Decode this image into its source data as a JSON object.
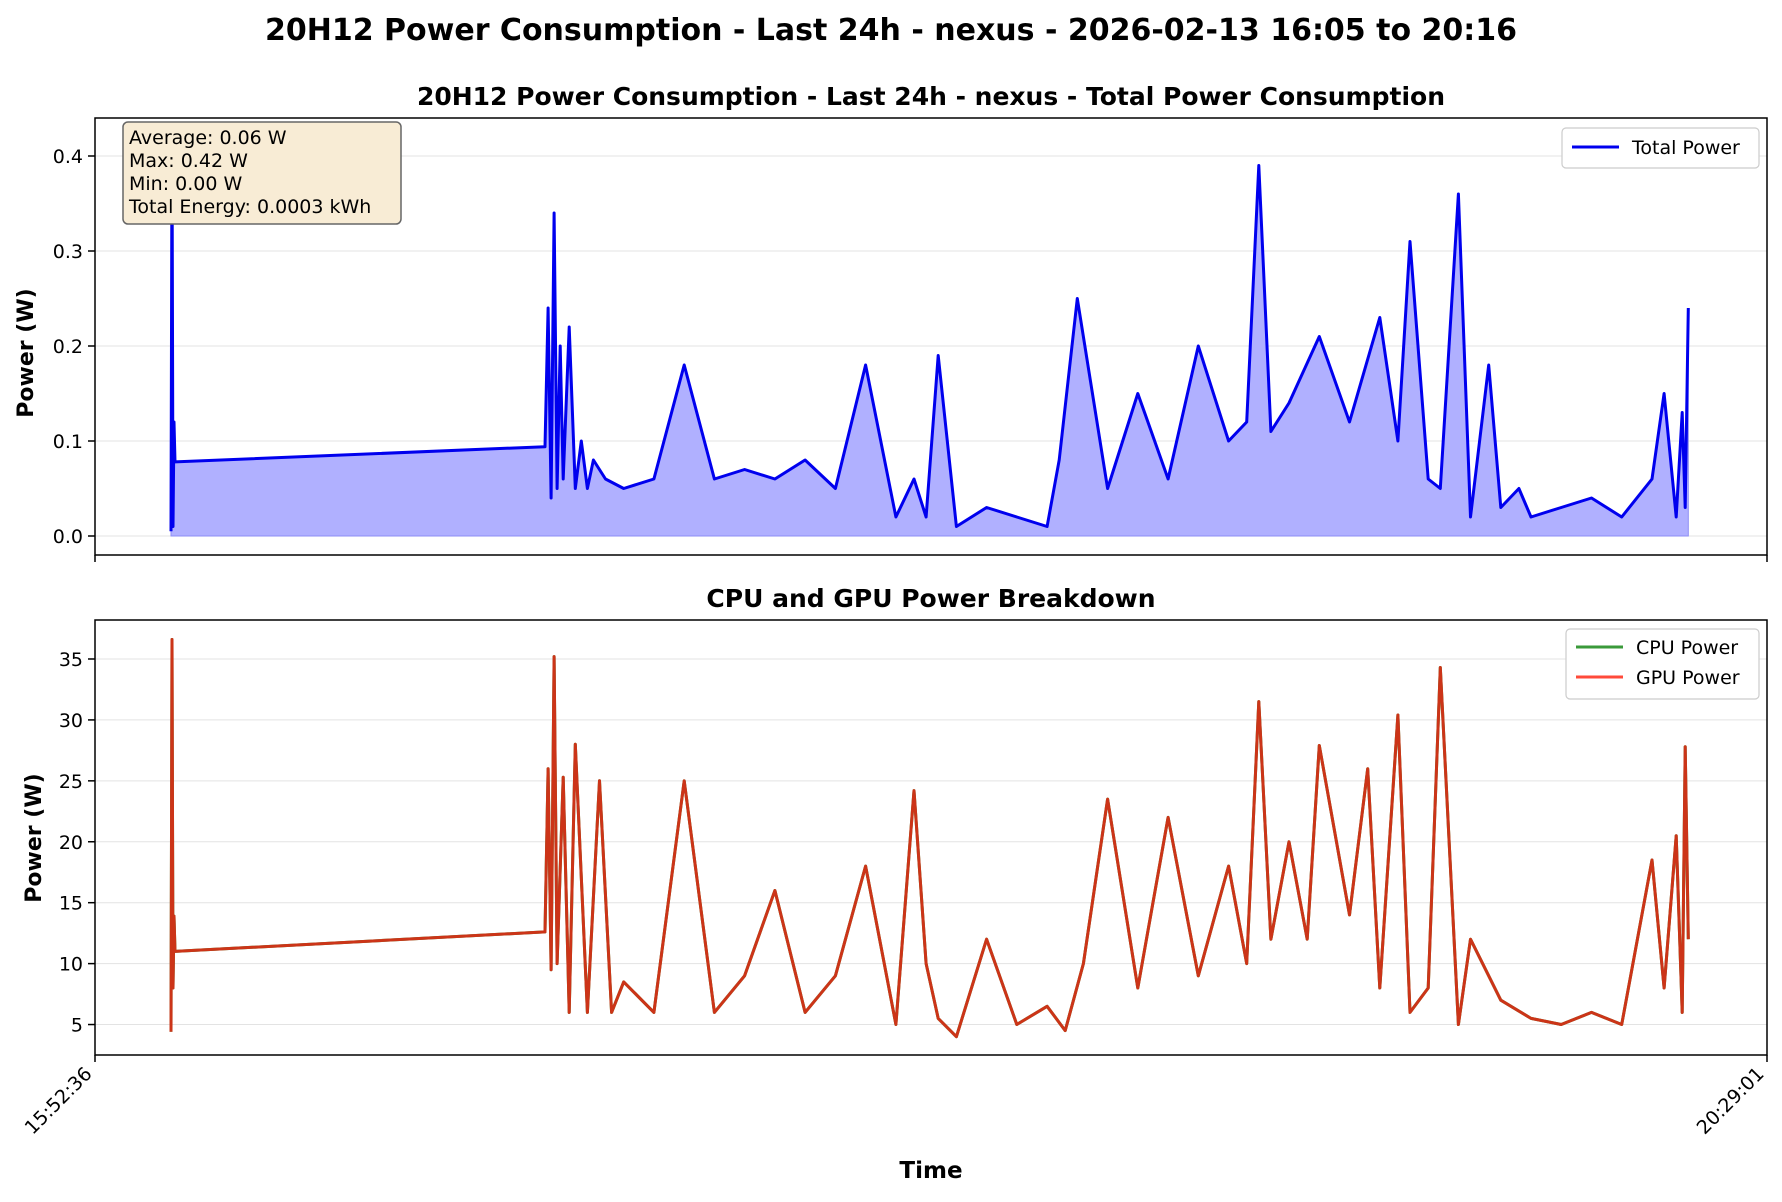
{
  "figure": {
    "suptitle": "20H12 Power Consumption - Last 24h - nexus - 2026-02-13 16:05 to 20:16",
    "xlabel": "Time"
  },
  "chart_data": [
    {
      "type": "area",
      "title": "20H12 Power Consumption - Last 24h - nexus - Total Power Consumption",
      "ylabel": "Power (W)",
      "xlim": [
        "15:52:36",
        "20:29:01"
      ],
      "ylim": [
        -0.02,
        0.44
      ],
      "yticks": [
        0.0,
        0.1,
        0.2,
        0.3,
        0.4
      ],
      "ytick_labels": [
        "0.0",
        "0.1",
        "0.2",
        "0.3",
        "0.4"
      ],
      "xtick_labels": [
        "15:52:36",
        "20:29:01"
      ],
      "grid": "horizontal",
      "legend_position": "top-right",
      "stats": {
        "lines": [
          "Average: 0.06 W",
          "Max: 0.42 W",
          "Min: 0.00 W",
          "Total Energy: 0.0003 kWh"
        ]
      },
      "series": [
        {
          "name": "Total Power",
          "color": "#0000ee",
          "fill": "#b0b0ff",
          "x": [
            "16:05:10",
            "16:05:20",
            "16:05:30",
            "16:05:40",
            "16:05:50",
            "17:07:00",
            "17:07:30",
            "17:08:00",
            "17:08:30",
            "17:09:00",
            "17:09:30",
            "17:10:00",
            "17:11:00",
            "17:12:00",
            "17:13:00",
            "17:14:00",
            "17:15:00",
            "17:17:00",
            "17:20:00",
            "17:25:00",
            "17:30:00",
            "17:35:00",
            "17:40:00",
            "17:45:00",
            "17:50:00",
            "17:55:00",
            "18:00:00",
            "18:05:00",
            "18:08:00",
            "18:10:00",
            "18:12:00",
            "18:15:00",
            "18:20:00",
            "18:25:00",
            "18:30:00",
            "18:32:00",
            "18:35:00",
            "18:40:00",
            "18:45:00",
            "18:50:00",
            "18:55:00",
            "19:00:00",
            "19:03:00",
            "19:05:00",
            "19:07:00",
            "19:10:00",
            "19:15:00",
            "19:20:00",
            "19:25:00",
            "19:28:00",
            "19:30:00",
            "19:33:00",
            "19:35:00",
            "19:38:00",
            "19:40:00",
            "19:43:00",
            "19:45:00",
            "19:48:00",
            "19:50:00",
            "19:55:00",
            "20:00:00",
            "20:05:00",
            "20:10:00",
            "20:12:00",
            "20:14:00",
            "20:15:00",
            "20:15:30",
            "20:16:00"
          ],
          "y": [
            0.005,
            0.42,
            0.01,
            0.12,
            0.078,
            0.094,
            0.24,
            0.04,
            0.34,
            0.05,
            0.2,
            0.06,
            0.22,
            0.05,
            0.1,
            0.05,
            0.08,
            0.06,
            0.05,
            0.06,
            0.18,
            0.06,
            0.07,
            0.06,
            0.08,
            0.05,
            0.18,
            0.02,
            0.06,
            0.02,
            0.19,
            0.01,
            0.03,
            0.02,
            0.01,
            0.08,
            0.25,
            0.05,
            0.15,
            0.06,
            0.2,
            0.1,
            0.12,
            0.39,
            0.11,
            0.14,
            0.21,
            0.12,
            0.23,
            0.1,
            0.31,
            0.06,
            0.05,
            0.36,
            0.02,
            0.18,
            0.03,
            0.05,
            0.02,
            0.03,
            0.04,
            0.02,
            0.06,
            0.15,
            0.02,
            0.13,
            0.03,
            0.24
          ]
        }
      ]
    },
    {
      "type": "line",
      "title": "CPU and GPU Power Breakdown",
      "ylabel": "Power (W)",
      "xlim": [
        "15:52:36",
        "20:29:01"
      ],
      "ylim": [
        2.5,
        38.2
      ],
      "yticks": [
        5,
        10,
        15,
        20,
        25,
        30,
        35
      ],
      "ytick_labels": [
        "5",
        "10",
        "15",
        "20",
        "25",
        "30",
        "35"
      ],
      "grid": "horizontal",
      "legend_position": "top-right",
      "series": [
        {
          "name": "CPU Power",
          "color": "#3a9a3a",
          "x": [
            "16:05:10",
            "16:05:20",
            "16:05:30",
            "16:05:40",
            "16:05:50",
            "17:07:00",
            "17:07:30",
            "17:08:00",
            "17:08:30",
            "17:09:00",
            "17:10:00",
            "17:11:00",
            "17:12:00",
            "17:14:00",
            "17:16:00",
            "17:18:00",
            "17:20:00",
            "17:25:00",
            "17:30:00",
            "17:35:00",
            "17:40:00",
            "17:45:00",
            "17:50:00",
            "17:55:00",
            "18:00:00",
            "18:05:00",
            "18:08:00",
            "18:10:00",
            "18:12:00",
            "18:15:00",
            "18:20:00",
            "18:25:00",
            "18:30:00",
            "18:33:00",
            "18:36:00",
            "18:40:00",
            "18:45:00",
            "18:50:00",
            "18:55:00",
            "19:00:00",
            "19:03:00",
            "19:05:00",
            "19:07:00",
            "19:10:00",
            "19:13:00",
            "19:15:00",
            "19:20:00",
            "19:23:00",
            "19:25:00",
            "19:28:00",
            "19:30:00",
            "19:33:00",
            "19:35:00",
            "19:38:00",
            "19:40:00",
            "19:45:00",
            "19:50:00",
            "19:55:00",
            "20:00:00",
            "20:05:00",
            "20:10:00",
            "20:12:00",
            "20:14:00",
            "20:15:00",
            "20:15:30",
            "20:16:00"
          ],
          "y": [
            4.4,
            36.6,
            8.0,
            13.9,
            11.0,
            12.6,
            26.0,
            9.5,
            35.2,
            10.0,
            25.3,
            6.0,
            28.0,
            6.0,
            25.0,
            6.0,
            8.5,
            6.0,
            25.0,
            6.0,
            9.0,
            16.0,
            6.0,
            9.0,
            18.0,
            5.0,
            24.2,
            10.0,
            5.5,
            4.0,
            12.0,
            5.0,
            6.5,
            4.5,
            10.0,
            23.5,
            8.0,
            22.0,
            9.0,
            18.0,
            10.0,
            31.5,
            12.0,
            20.0,
            12.0,
            27.9,
            14.0,
            26.0,
            8.0,
            30.4,
            6.0,
            8.0,
            34.3,
            5.0,
            12.0,
            7.0,
            5.5,
            5.0,
            6.0,
            5.0,
            18.5,
            8.0,
            20.5,
            6.0,
            27.8,
            12.0
          ]
        },
        {
          "name": "GPU Power",
          "color": "#ff4a3a",
          "x": [
            "16:05:10",
            "16:05:20",
            "16:05:30",
            "16:05:40",
            "16:05:50",
            "17:07:00",
            "17:07:30",
            "17:08:00",
            "17:08:30",
            "17:09:00",
            "17:10:00",
            "17:11:00",
            "17:12:00",
            "17:14:00",
            "17:16:00",
            "17:18:00",
            "17:20:00",
            "17:25:00",
            "17:30:00",
            "17:35:00",
            "17:40:00",
            "17:45:00",
            "17:50:00",
            "17:55:00",
            "18:00:00",
            "18:05:00",
            "18:08:00",
            "18:10:00",
            "18:12:00",
            "18:15:00",
            "18:20:00",
            "18:25:00",
            "18:30:00",
            "18:33:00",
            "18:36:00",
            "18:40:00",
            "18:45:00",
            "18:50:00",
            "18:55:00",
            "19:00:00",
            "19:03:00",
            "19:05:00",
            "19:07:00",
            "19:10:00",
            "19:13:00",
            "19:15:00",
            "19:20:00",
            "19:23:00",
            "19:25:00",
            "19:28:00",
            "19:30:00",
            "19:33:00",
            "19:35:00",
            "19:38:00",
            "19:40:00",
            "19:45:00",
            "19:50:00",
            "19:55:00",
            "20:00:00",
            "20:05:00",
            "20:10:00",
            "20:12:00",
            "20:14:00",
            "20:15:00",
            "20:15:30",
            "20:16:00"
          ],
          "y": [
            4.4,
            36.6,
            8.0,
            13.9,
            11.0,
            12.6,
            26.0,
            9.5,
            35.2,
            10.0,
            25.3,
            6.0,
            28.0,
            6.0,
            25.0,
            6.0,
            8.5,
            6.0,
            25.0,
            6.0,
            9.0,
            16.0,
            6.0,
            9.0,
            18.0,
            5.0,
            24.2,
            10.0,
            5.5,
            4.0,
            12.0,
            5.0,
            6.5,
            4.5,
            10.0,
            23.5,
            8.0,
            22.0,
            9.0,
            18.0,
            10.0,
            31.5,
            12.0,
            20.0,
            12.0,
            27.9,
            14.0,
            26.0,
            8.0,
            30.4,
            6.0,
            8.0,
            34.3,
            5.0,
            12.0,
            7.0,
            5.5,
            5.0,
            6.0,
            5.0,
            18.5,
            8.0,
            20.5,
            6.0,
            27.8,
            12.0
          ]
        }
      ]
    }
  ]
}
